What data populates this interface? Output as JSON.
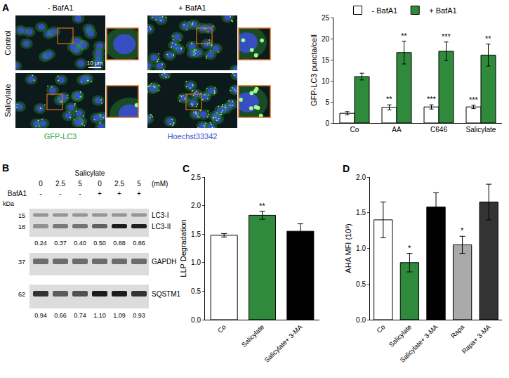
{
  "micrographs": {
    "panel": "A",
    "columns": [
      "- BafA1",
      "+ BafA1"
    ],
    "rows": [
      "Control",
      "Salicylate"
    ],
    "scale_bar": "10 µm",
    "channels": [
      {
        "name": "GFP-LC3",
        "color": "#2fa83a"
      },
      {
        "name": "Hoechst33342",
        "color": "#3a4fd0"
      }
    ]
  },
  "western_blot": {
    "panel": "B",
    "treatment": "Salicylate",
    "unit_header": "kDa",
    "concentrations": [
      "0",
      "2.5",
      "5",
      "0",
      "2.5",
      "5"
    ],
    "concentration_unit": "(mM)",
    "bafa1_label": "BafA1",
    "bafa1": [
      "-",
      "-",
      "-",
      "+",
      "+",
      "+"
    ],
    "rows": [
      {
        "kda": [
          "15",
          "18"
        ],
        "labels": [
          "LC3-I",
          "LC3-II"
        ],
        "quant": [
          "0.24",
          "0.37",
          "0.40",
          "0.50",
          "0.88",
          "0.86"
        ]
      },
      {
        "kda": [
          "37"
        ],
        "labels": [
          "GAPDH"
        ]
      },
      {
        "kda": [
          "62"
        ],
        "labels": [
          "SQSTM1"
        ],
        "quant": [
          "0.94",
          "0.66",
          "0.74",
          "1.10",
          "1.09",
          "0.93"
        ]
      }
    ]
  },
  "chart_data": [
    {
      "type": "bar",
      "categories": [
        "Co",
        "AA",
        "C646",
        "Salicylate"
      ],
      "y_label": "GFP-LC3 puncta/cell",
      "ylim": [
        0,
        25
      ],
      "yticks": [
        0,
        5,
        10,
        15,
        20,
        25
      ],
      "legend": "top",
      "series": [
        {
          "name": "- BafA1",
          "color": "#ffffff",
          "values": [
            2.3,
            3.7,
            3.8,
            3.8
          ],
          "errors": [
            0.4,
            0.6,
            0.5,
            0.4
          ],
          "significance": [
            null,
            "**",
            "***",
            "***"
          ]
        },
        {
          "name": "+ BafA1",
          "color": "#2f8a3c",
          "values": [
            11,
            16.7,
            17,
            16.1
          ],
          "errors": [
            0.8,
            2.7,
            2.2,
            2.6
          ],
          "significance": [
            null,
            "**",
            "***",
            "**"
          ]
        }
      ]
    },
    {
      "type": "bar",
      "title": "C",
      "categories": [
        "Co",
        "Salicylate",
        "Salicylate+ 3-MA"
      ],
      "values": [
        1.48,
        1.83,
        1.55
      ],
      "errors": [
        0.03,
        0.07,
        0.13
      ],
      "significance": [
        null,
        "**",
        null
      ],
      "colors": [
        "#ffffff",
        "#2f8a3c",
        "#000000"
      ],
      "y_label": "LLP Degradation",
      "ylim": [
        0,
        2.5
      ],
      "yticks": [
        {
          "value": 0,
          "label": "0.0"
        },
        0.5,
        {
          "value": 1,
          "label": "1.0"
        },
        1.5,
        {
          "value": 2,
          "label": "2.0"
        },
        2.5
      ]
    },
    {
      "type": "bar",
      "title": "D",
      "categories": [
        "Co",
        "Salicylate",
        "Salicylate+ 3-MA",
        "Rapa",
        "Rapa+ 3-MA"
      ],
      "values": [
        1.4,
        0.8,
        1.58,
        1.05,
        1.65
      ],
      "errors": [
        0.25,
        0.13,
        0.2,
        0.12,
        0.25
      ],
      "significance": [
        null,
        "*",
        null,
        "*",
        null
      ],
      "colors": [
        "#ffffff",
        "#2f8a3c",
        "#000000",
        "#aaaaaa",
        "#333333"
      ],
      "y_label": "AHA MFI (10³)",
      "ylim": [
        0,
        2
      ],
      "yticks": [
        {
          "value": 0,
          "label": "0.0"
        },
        0.5,
        {
          "value": 1,
          "label": "1.0"
        },
        1.5,
        {
          "value": 2,
          "label": "2.0"
        }
      ]
    }
  ]
}
